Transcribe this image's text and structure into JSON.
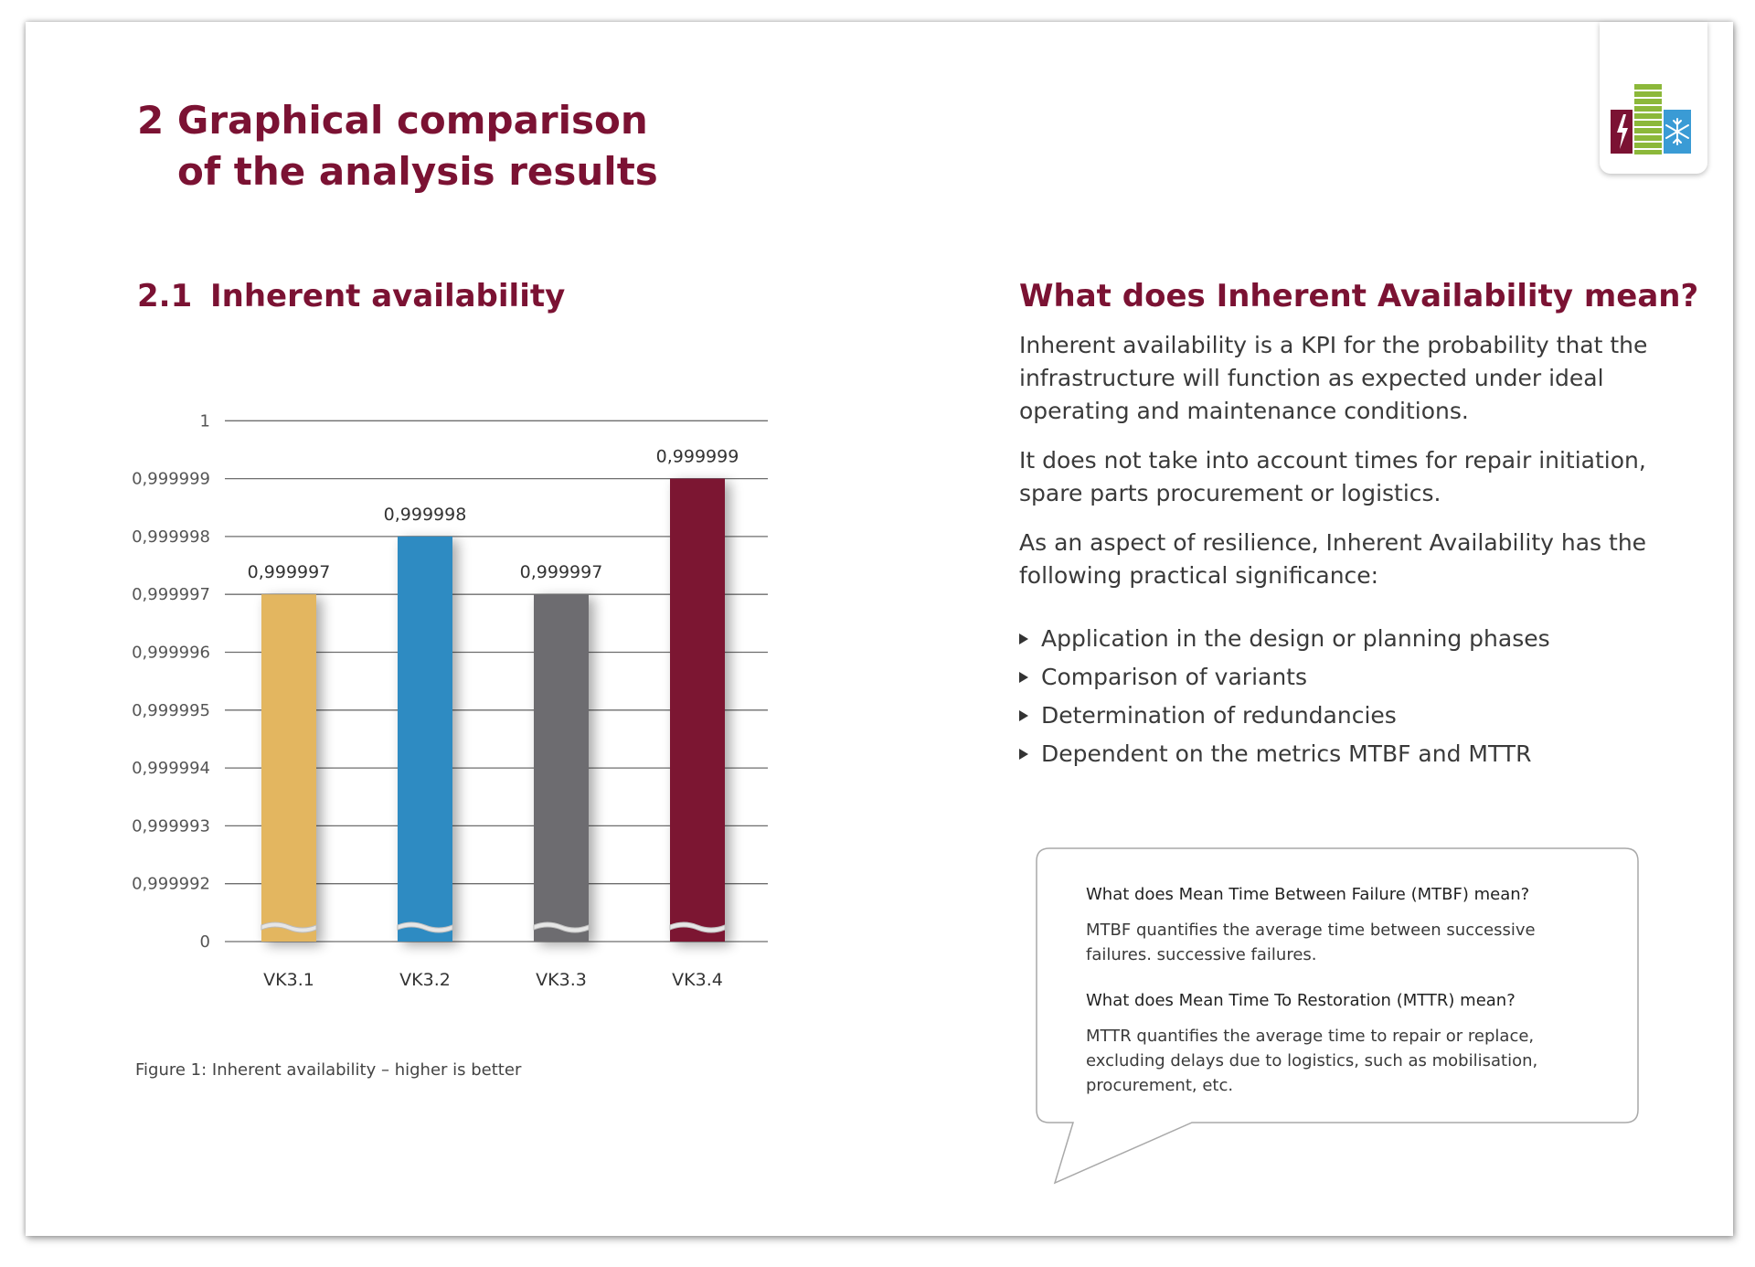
{
  "header": {
    "title_line1": "2 Graphical comparison",
    "title_line2": "of the analysis results"
  },
  "logo": {
    "icon": "availability-logo-icon",
    "colors": {
      "red": "#7b1233",
      "green": "#8cb83a",
      "blue": "#3a9bd5"
    }
  },
  "section": {
    "number": "2.1",
    "title": "Inherent availability"
  },
  "chart_data": {
    "type": "bar",
    "title": "",
    "xlabel": "",
    "ylabel": "",
    "categories": [
      "VK3.1",
      "VK3.2",
      "VK3.3",
      "VK3.4"
    ],
    "values": [
      0.999997,
      0.999998,
      0.999997,
      0.999999
    ],
    "value_labels": [
      "0,999997",
      "0,999998",
      "0,999997",
      "0,999999"
    ],
    "bar_colors": [
      "#e3b660",
      "#2f8bc2",
      "#6d6c70",
      "#7b1233"
    ],
    "y_ticks": [
      "0",
      "0,999992",
      "0,999993",
      "0,999994",
      "0,999995",
      "0,999996",
      "0,999997",
      "0,999998",
      "0,999999",
      "1"
    ],
    "y_tick_values": [
      0,
      0.999992,
      0.999993,
      0.999994,
      0.999995,
      0.999996,
      0.999997,
      0.999998,
      0.999999,
      1
    ],
    "axis_break": true,
    "grid": true,
    "legend": "none"
  },
  "caption": "Figure 1: Inherent availability – higher is better",
  "right": {
    "title": "What does Inherent Availability mean?",
    "para1": "Inherent availability is a KPI for the probability that the infrastructure will function as expected under ideal operating and maintenance conditions.",
    "para2": "It does not take into account times for repair initiation, spare parts procurement or logistics.",
    "para3": "As an aspect of resilience, Inherent Availability has the following practical significance:",
    "bullets": [
      "Application in the design or planning phases",
      "Comparison of variants",
      "Determination of redundancies",
      "Dependent on the metrics MTBF and MTTR"
    ]
  },
  "bubble": {
    "q1": "What does Mean Time Between Failure (MTBF) mean?",
    "a1": "MTBF quantifies the average time between successive failures. successive failures.",
    "q2": "What does Mean Time To Restoration (MTTR) mean?",
    "a2": "MTTR quantifies the average time to repair or replace, excluding delays due to logistics, such as mobilisation, procurement, etc."
  }
}
